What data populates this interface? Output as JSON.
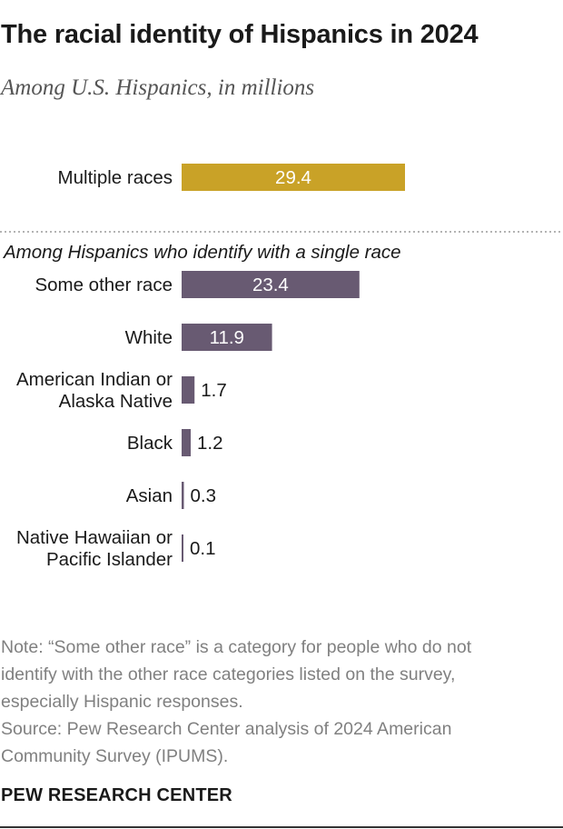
{
  "title": "The racial identity of Hispanics in 2024",
  "subtitle": "Among U.S. Hispanics, in millions",
  "colors": {
    "multiple": "#C9A227",
    "single": "#685A72",
    "value_on_bar": "#FFFFFF",
    "value_outside": "#1a1a1a",
    "divider": "#9a9a9a"
  },
  "chart_data": {
    "type": "bar",
    "orientation": "horizontal",
    "xlim": [
      0,
      29.4
    ],
    "groups": [
      {
        "label": "",
        "bars": [
          {
            "category": [
              "Multiple races"
            ],
            "value": 29.4,
            "display": "29.4",
            "color_key": "multiple"
          }
        ]
      },
      {
        "label": "Among Hispanics who identify with a single race",
        "bars": [
          {
            "category": [
              "Some other race"
            ],
            "value": 23.4,
            "display": "23.4",
            "color_key": "single"
          },
          {
            "category": [
              "White"
            ],
            "value": 11.9,
            "display": "11.9",
            "color_key": "single"
          },
          {
            "category": [
              "American Indian or",
              "Alaska Native"
            ],
            "value": 1.7,
            "display": "1.7",
            "color_key": "single"
          },
          {
            "category": [
              "Black"
            ],
            "value": 1.2,
            "display": "1.2",
            "color_key": "single"
          },
          {
            "category": [
              "Asian"
            ],
            "value": 0.3,
            "display": "0.3",
            "color_key": "single"
          },
          {
            "category": [
              "Native Hawaiian or",
              "Pacific Islander"
            ],
            "value": 0.1,
            "display": "0.1",
            "color_key": "single"
          }
        ]
      }
    ]
  },
  "notes": {
    "note_lines": [
      "Note: “Some other race” is a category for people who do not",
      "identify with the other race categories listed on the survey,",
      "especially Hispanic responses."
    ],
    "source_lines": [
      "Source: Pew Research Center analysis of 2024 American",
      "Community Survey (IPUMS)."
    ]
  },
  "brand": "PEW RESEARCH CENTER"
}
